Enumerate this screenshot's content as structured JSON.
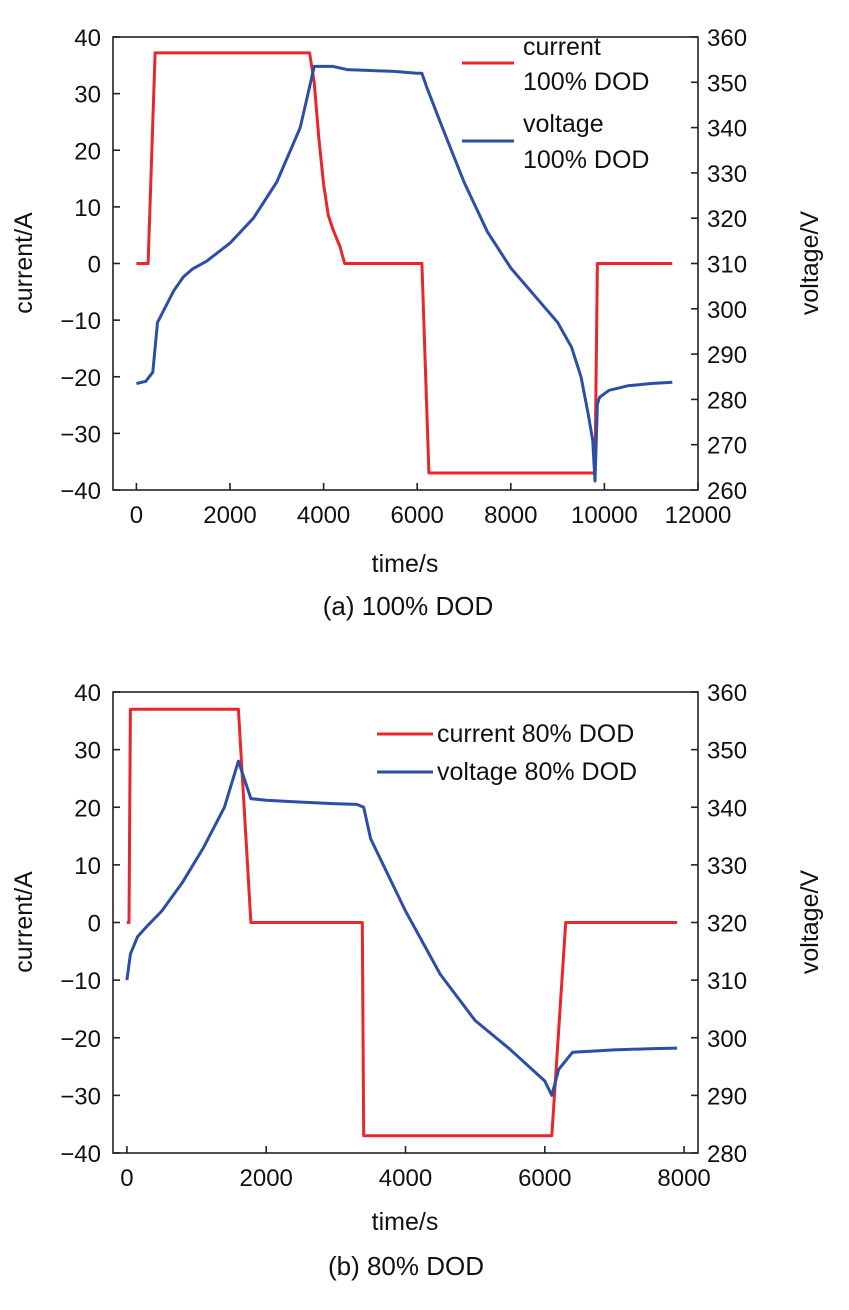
{
  "chart_data": [
    {
      "type": "line",
      "caption": "(a) 100% DOD",
      "xlabel": "time/s",
      "ylabel": "current/A",
      "y2label": "voltage/V",
      "xlim": [
        -500,
        12000
      ],
      "ylim": [
        -40,
        40
      ],
      "y2lim": [
        260,
        360
      ],
      "xticks": [
        0,
        2000,
        4000,
        6000,
        8000,
        10000,
        12000
      ],
      "xtick_labels": [
        "0",
        "2000",
        "4000",
        "6000",
        "8000",
        "10000",
        "12000"
      ],
      "yticks": [
        40,
        30,
        20,
        10,
        0,
        -10,
        -20,
        -30,
        -40
      ],
      "ytick_labels": [
        "40",
        "30",
        "20",
        "10",
        "0",
        "−10",
        "−20",
        "−30",
        "−40"
      ],
      "y2ticks": [
        360,
        350,
        340,
        330,
        320,
        310,
        300,
        290,
        280,
        270,
        260
      ],
      "y2tick_labels": [
        "360",
        "350",
        "340",
        "330",
        "320",
        "310",
        "300",
        "290",
        "280",
        "270",
        "260"
      ],
      "legend": [
        {
          "line1": "current",
          "line2": "100% DOD",
          "color": "#e8262b"
        },
        {
          "line1": "voltage",
          "line2": "100% DOD",
          "color": "#2c4ea6"
        }
      ],
      "series": [
        {
          "name": "current 100% DOD",
          "axis": "left",
          "color": "#e8262b",
          "x": [
            0,
            250,
            400,
            3700,
            3800,
            3900,
            4000,
            4100,
            4200,
            4300,
            4350,
            4400,
            4450,
            6100,
            6250,
            9750,
            9800,
            9850,
            11450
          ],
          "y": [
            0,
            0,
            37.2,
            37.2,
            32,
            22,
            14,
            8.5,
            6,
            4,
            3,
            1.5,
            0,
            0,
            -37,
            -37,
            -37,
            0,
            0
          ]
        },
        {
          "name": "voltage 100% DOD",
          "axis": "right",
          "color": "#2c4ea6",
          "x": [
            0,
            200,
            350,
            450,
            600,
            800,
            1000,
            1200,
            1500,
            2000,
            2500,
            3000,
            3500,
            3700,
            3800,
            4200,
            4500,
            5000,
            5500,
            6000,
            6100,
            6200,
            6500,
            7000,
            7500,
            8000,
            8500,
            9000,
            9300,
            9500,
            9650,
            9750,
            9800,
            9850,
            9900,
            10100,
            10500,
            11000,
            11450
          ],
          "y": [
            283.5,
            284,
            286,
            297,
            300,
            304,
            307,
            308.8,
            310.5,
            314.5,
            320,
            328,
            340,
            349,
            353.5,
            353.5,
            352.8,
            352.6,
            352.4,
            352,
            352,
            349,
            341,
            328,
            317,
            309,
            303,
            297,
            291.5,
            285,
            277,
            271,
            262,
            279,
            280.5,
            282,
            283,
            283.5,
            283.8
          ]
        }
      ]
    },
    {
      "type": "line",
      "caption": "(b) 80% DOD",
      "xlabel": "time/s",
      "ylabel": "current/A",
      "y2label": "voltage/V",
      "xlim": [
        -200,
        8200
      ],
      "ylim": [
        -40,
        40
      ],
      "y2lim": [
        280,
        360
      ],
      "xticks": [
        0,
        2000,
        4000,
        6000,
        8000
      ],
      "xtick_labels": [
        "0",
        "2000",
        "4000",
        "6000",
        "8000"
      ],
      "yticks": [
        40,
        30,
        20,
        10,
        0,
        -10,
        -20,
        -30,
        -40
      ],
      "ytick_labels": [
        "40",
        "30",
        "20",
        "10",
        "0",
        "−10",
        "−20",
        "−30",
        "−40"
      ],
      "y2ticks": [
        360,
        350,
        340,
        330,
        320,
        310,
        300,
        290,
        280
      ],
      "y2tick_labels": [
        "360",
        "350",
        "340",
        "330",
        "320",
        "310",
        "300",
        "290",
        "280"
      ],
      "legend": [
        {
          "line1": "current 80% DOD",
          "line2": "",
          "color": "#e8262b"
        },
        {
          "line1": "voltage 80% DOD",
          "line2": "",
          "color": "#2c4ea6"
        }
      ],
      "series": [
        {
          "name": "current 80% DOD",
          "axis": "left",
          "color": "#e8262b",
          "x": [
            0,
            30,
            50,
            1600,
            1780,
            1800,
            3380,
            3400,
            6100,
            6300,
            6350,
            7900
          ],
          "y": [
            0,
            0,
            37,
            37,
            0,
            0,
            0,
            -37,
            -37,
            0,
            0,
            0
          ]
        },
        {
          "name": "voltage 80% DOD",
          "axis": "right",
          "color": "#2c4ea6",
          "x": [
            0,
            50,
            150,
            300,
            500,
            800,
            1100,
            1400,
            1600,
            1780,
            2000,
            2500,
            3000,
            3300,
            3400,
            3500,
            4000,
            4500,
            5000,
            5500,
            6000,
            6100,
            6200,
            6400,
            7000,
            7500,
            7900
          ],
          "y": [
            310,
            314.5,
            317.5,
            319.5,
            322,
            327,
            333,
            340,
            348,
            341.5,
            341.2,
            340.9,
            340.6,
            340.5,
            340,
            334.5,
            322,
            311,
            303,
            298,
            292.5,
            290,
            294.5,
            297.5,
            297.9,
            298.1,
            298.2
          ]
        }
      ]
    }
  ]
}
